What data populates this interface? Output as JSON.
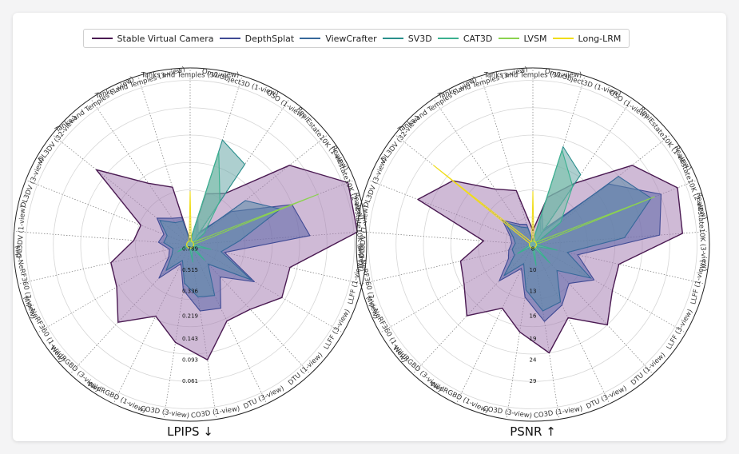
{
  "chart_data": [
    {
      "type": "radar",
      "title": "LPIPS ↓",
      "metric": "LPIPS",
      "axes": [
        "Tanks and Temples (32-view)",
        "OmniObject3D (1-view)",
        "GSO (1-view)",
        "RealEstate10K (1-view)",
        "RealEstate10K (2-view)",
        "RealEstate10K (3-view)",
        "LLFF (1-view)",
        "LLFF (3-view)",
        "DTU (1-view)",
        "DTU (3-view)",
        "CO3D (1-view)",
        "CO3D (3-view)",
        "WildRGBD (1-view)",
        "WildRGBD (3-view)",
        "Mip-NeRF360 (1-view)",
        "Mip-NeRF360 (3-view)",
        "DL3DV (1-view)",
        "DL3DV (3-view)",
        "DL3DV (32-view)",
        "Tanks and Temples (1-view)",
        "Tanks and Temples (3-view)"
      ],
      "tick_labels": [
        "0.789",
        "0.515",
        "0.336",
        "0.219",
        "0.143",
        "0.093",
        "0.061"
      ],
      "series": [
        {
          "name": "Stable Virtual Camera",
          "values": [
            0.02,
            0.3,
            0.35,
            0.72,
            0.96,
            0.95,
            0.58,
            0.6,
            0.5,
            0.48,
            0.66,
            0.56,
            0.45,
            0.6,
            0.48,
            0.46,
            0.32,
            0.3,
            0.68,
            0.42,
            0.34
          ]
        },
        {
          "name": "DepthSplat",
          "values": [
            0.02,
            0.15,
            0.08,
            0.3,
            0.62,
            0.68,
            0.2,
            0.42,
            0.25,
            0.4,
            0.38,
            0.26,
            0.12,
            0.26,
            0.14,
            0.12,
            0.18,
            0.16,
            0.24,
            0.18,
            0.16
          ]
        },
        {
          "name": "ViewCrafter",
          "values": [
            0.02,
            0.12,
            0.06,
            0.4,
            0.55,
            0.28,
            0.18,
            0.4,
            0.15,
            0.32,
            0.3,
            0.22,
            0.1,
            0.2,
            0.12,
            0.1,
            0.15,
            0.14,
            0.22,
            0.15,
            0.14
          ]
        },
        {
          "name": "SV3D",
          "values": [
            0.02,
            0.62,
            0.55,
            0.02,
            0.02,
            0.02,
            0.02,
            0.02,
            0.02,
            0.02,
            0.02,
            0.02,
            0.02,
            0.02,
            0.02,
            0.02,
            0.02,
            0.02,
            0.02,
            0.02,
            0.02
          ]
        },
        {
          "name": "CAT3D",
          "values": [
            0.02,
            0.55,
            0.3,
            0.1,
            0.02,
            0.02,
            0.12,
            0.02,
            0.12,
            0.02,
            0.1,
            0.02,
            0.02,
            0.02,
            0.08,
            0.02,
            0.02,
            0.02,
            0.02,
            0.02,
            0.02
          ]
        },
        {
          "name": "LVSM",
          "values": [
            0.02,
            0.02,
            0.02,
            0.02,
            0.78,
            0.02,
            0.02,
            0.02,
            0.02,
            0.02,
            0.02,
            0.02,
            0.02,
            0.02,
            0.02,
            0.02,
            0.02,
            0.02,
            0.02,
            0.02,
            0.02
          ]
        },
        {
          "name": "Long-LRM",
          "values": [
            0.3,
            0.02,
            0.02,
            0.02,
            0.02,
            0.02,
            0.02,
            0.02,
            0.02,
            0.02,
            0.02,
            0.02,
            0.02,
            0.02,
            0.02,
            0.02,
            0.02,
            0.02,
            0.02,
            0.02,
            0.02
          ]
        }
      ]
    },
    {
      "type": "radar",
      "title": "PSNR ↑",
      "metric": "PSNR",
      "axes": [
        "Tanks and Temples (32-view)",
        "OmniObject3D (1-view)",
        "GSO (1-view)",
        "RealEstate10K (1-view)",
        "RealEstate10K (2-view)",
        "RealEstate10K (3-view)",
        "LLFF (1-view)",
        "LLFF (3-view)",
        "DTU (1-view)",
        "DTU (3-view)",
        "CO3D (1-view)",
        "CO3D (3-view)",
        "WildRGBD (1-view)",
        "WildRGBD (3-view)",
        "Mip-NeRF360 (1-view)",
        "Mip-NeRF360 (3-view)",
        "DL3DV (1-view)",
        "DL3DV (3-view)",
        "DL3DV (32-view)",
        "Tanks and Temples (1-view)",
        "Tanks and Temples (3-view)"
      ],
      "tick_labels": [
        "8",
        "10",
        "13",
        "16",
        "19",
        "24",
        "29"
      ],
      "series": [
        {
          "name": "Stable Virtual Camera",
          "values": [
            0.08,
            0.28,
            0.42,
            0.72,
            0.88,
            0.85,
            0.5,
            0.52,
            0.62,
            0.46,
            0.62,
            0.5,
            0.4,
            0.55,
            0.45,
            0.42,
            0.28,
            0.7,
            0.58,
            0.38,
            0.32
          ]
        },
        {
          "name": "DepthSplat",
          "values": [
            0.02,
            0.18,
            0.1,
            0.55,
            0.78,
            0.72,
            0.26,
            0.4,
            0.3,
            0.38,
            0.44,
            0.3,
            0.15,
            0.28,
            0.16,
            0.14,
            0.12,
            0.14,
            0.22,
            0.14,
            0.12
          ]
        },
        {
          "name": "ViewCrafter",
          "values": [
            0.02,
            0.14,
            0.08,
            0.62,
            0.72,
            0.52,
            0.2,
            0.38,
            0.2,
            0.36,
            0.38,
            0.26,
            0.12,
            0.24,
            0.12,
            0.12,
            0.1,
            0.12,
            0.2,
            0.12,
            0.1
          ]
        },
        {
          "name": "SV3D",
          "values": [
            0.02,
            0.58,
            0.48,
            0.02,
            0.02,
            0.02,
            0.02,
            0.02,
            0.02,
            0.02,
            0.02,
            0.02,
            0.02,
            0.02,
            0.02,
            0.02,
            0.02,
            0.02,
            0.02,
            0.02,
            0.02
          ]
        },
        {
          "name": "CAT3D",
          "values": [
            0.02,
            0.56,
            0.4,
            0.2,
            0.02,
            0.02,
            0.14,
            0.02,
            0.14,
            0.02,
            0.12,
            0.02,
            0.02,
            0.02,
            0.1,
            0.02,
            0.02,
            0.02,
            0.02,
            0.02,
            0.02
          ]
        },
        {
          "name": "LVSM",
          "values": [
            0.02,
            0.02,
            0.02,
            0.02,
            0.74,
            0.02,
            0.02,
            0.02,
            0.02,
            0.02,
            0.02,
            0.02,
            0.02,
            0.02,
            0.02,
            0.02,
            0.02,
            0.02,
            0.02,
            0.02,
            0.02
          ]
        },
        {
          "name": "Long-LRM",
          "values": [
            0.3,
            0.02,
            0.02,
            0.02,
            0.02,
            0.02,
            0.02,
            0.02,
            0.02,
            0.02,
            0.02,
            0.02,
            0.02,
            0.02,
            0.02,
            0.02,
            0.02,
            0.02,
            0.72,
            0.02,
            0.02
          ]
        }
      ]
    }
  ],
  "legend": [
    {
      "name": "Stable Virtual Camera",
      "color": "#4a1a52"
    },
    {
      "name": "DepthSplat",
      "color": "#3f4a94"
    },
    {
      "name": "ViewCrafter",
      "color": "#36689a"
    },
    {
      "name": "SV3D",
      "color": "#2a8f8c"
    },
    {
      "name": "CAT3D",
      "color": "#3bb08f"
    },
    {
      "name": "LVSM",
      "color": "#8bd24f"
    },
    {
      "name": "Long-LRM",
      "color": "#f0dd1a"
    }
  ],
  "colors": {
    "Stable Virtual Camera": {
      "stroke": "#4a1a52",
      "fill": "#a882b4"
    },
    "DepthSplat": {
      "stroke": "#3f4a94",
      "fill": "#5b64a8"
    },
    "ViewCrafter": {
      "stroke": "#36689a",
      "fill": "#5a8aa8"
    },
    "SV3D": {
      "stroke": "#2a8f8c",
      "fill": "#6aa8a8"
    },
    "CAT3D": {
      "stroke": "#3bb08f",
      "fill": "#7ac0aa"
    },
    "LVSM": {
      "stroke": "#8bd24f",
      "fill": "none"
    },
    "Long-LRM": {
      "stroke": "#f0dd1a",
      "fill": "none"
    }
  }
}
